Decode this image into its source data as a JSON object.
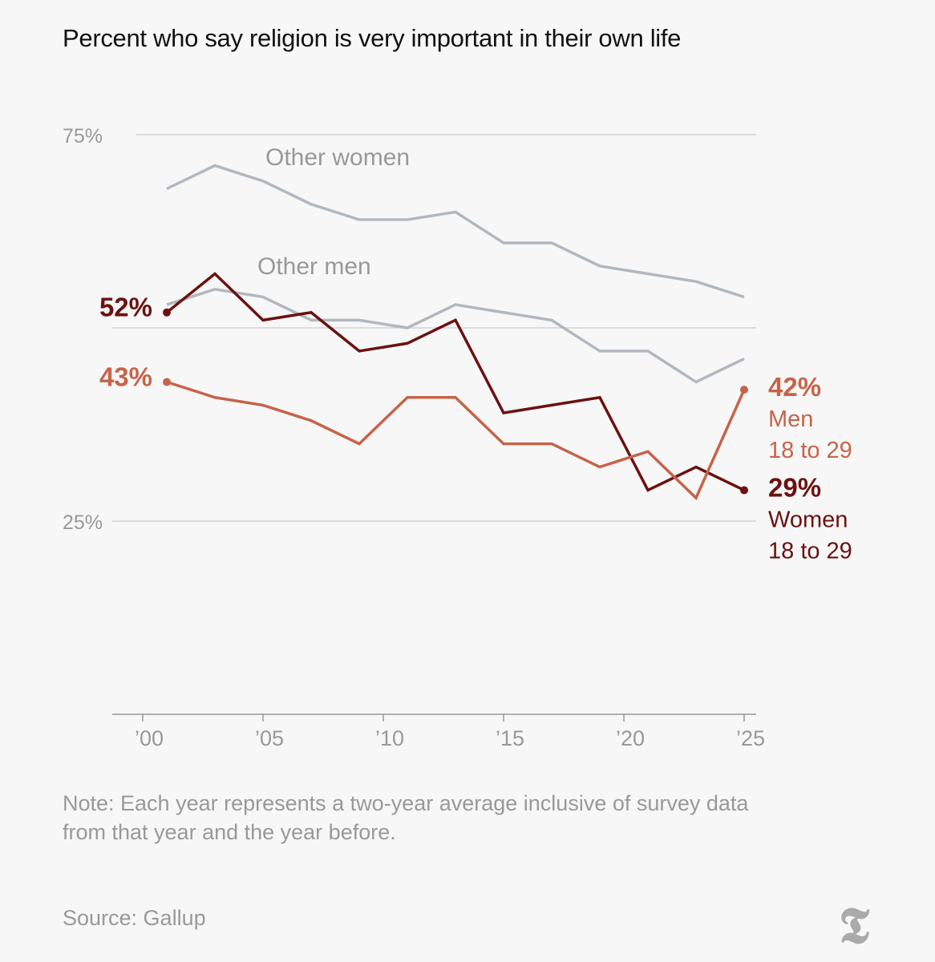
{
  "chart_data": {
    "type": "line",
    "title": "Percent who say religion is very important in their own life",
    "x": [
      2001,
      2003,
      2005,
      2007,
      2009,
      2011,
      2013,
      2015,
      2017,
      2019,
      2021,
      2023,
      2025
    ],
    "xticks": [
      2000,
      2005,
      2010,
      2015,
      2020,
      2025
    ],
    "xtick_labels": [
      "’00",
      "’05",
      "’10",
      "’15",
      "’20",
      "’25"
    ],
    "xlim": [
      1999,
      2025.5
    ],
    "yticks": [
      25,
      75
    ],
    "ytick_labels": [
      "25%",
      "75%"
    ],
    "gridlines": [
      25,
      50,
      75
    ],
    "ylim": [
      0,
      75
    ],
    "series": [
      {
        "name": "Other women",
        "color": "#b1b8bf",
        "values": [
          68,
          71,
          69,
          66,
          64,
          64,
          65,
          61,
          61,
          58,
          57,
          56,
          54
        ]
      },
      {
        "name": "Other men",
        "color": "#b1b8bf",
        "values": [
          53,
          55,
          54,
          51,
          51,
          50,
          53,
          52,
          51,
          47,
          47,
          43,
          46
        ]
      },
      {
        "name": "Women 18 to 29",
        "color": "#6b1210",
        "values": [
          52,
          57,
          51,
          52,
          47,
          48,
          51,
          39,
          40,
          41,
          29,
          32,
          29
        ],
        "start_label": "52%",
        "end_label": "29%",
        "end_name": [
          "Women",
          "18 to 29"
        ]
      },
      {
        "name": "Men 18 to 29",
        "color": "#c7634a",
        "values": [
          43,
          41,
          40,
          38,
          35,
          41,
          41,
          35,
          35,
          32,
          34,
          28,
          42
        ],
        "start_label": "43%",
        "end_label": "42%",
        "end_name": [
          "Men",
          "18 to 29"
        ]
      }
    ]
  },
  "note": "Note: Each year represents a two-year average inclusive of survey data from that year and the year before.",
  "source": "Source: Gallup",
  "logo": "T"
}
